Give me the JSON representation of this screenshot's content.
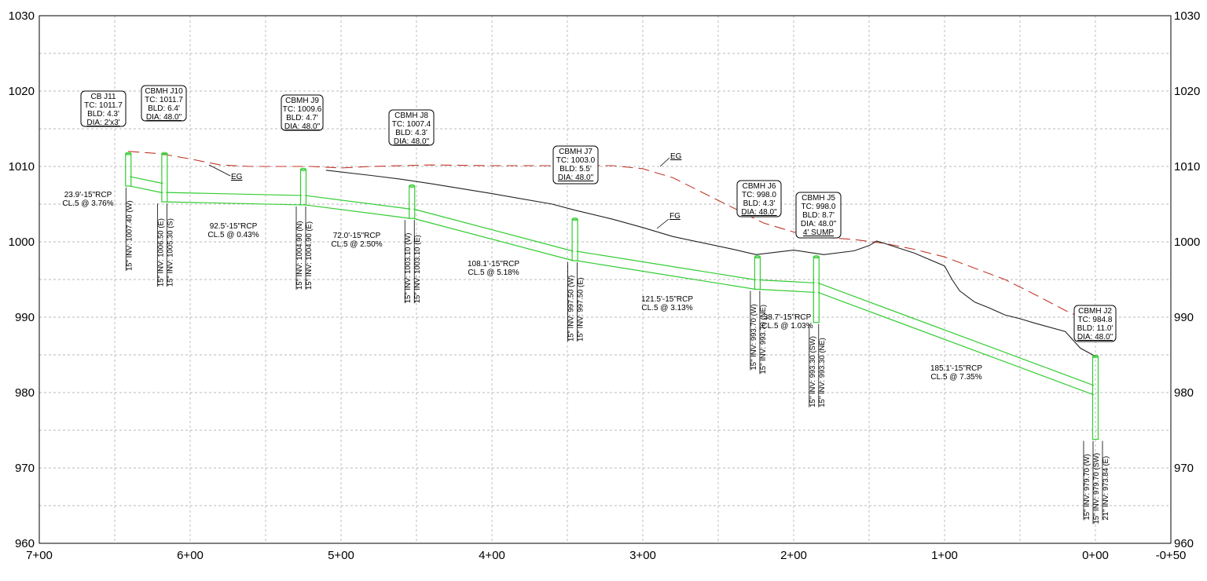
{
  "chart_data": {
    "type": "profile",
    "y_axis": {
      "range": [
        960,
        1030
      ],
      "tick_labels": [
        "960",
        "970",
        "980",
        "990",
        "1000",
        "1010",
        "1020",
        "1030"
      ]
    },
    "x_axis": {
      "direction": "decreasing-left-to-right",
      "tick_labels": [
        "7+00",
        "6+00",
        "5+00",
        "4+00",
        "3+00",
        "2+00",
        "1+00",
        "0+00",
        "-0+50"
      ]
    },
    "grid": "dashed",
    "series": [
      {
        "name": "EG",
        "style": "red dashed",
        "label": "EG",
        "points": [
          [
            641,
            1012
          ],
          [
            620,
            1011.7
          ],
          [
            600,
            1011
          ],
          [
            580,
            1010.2
          ],
          [
            560,
            1010
          ],
          [
            540,
            1010
          ],
          [
            520,
            1010
          ],
          [
            500,
            1009.8
          ],
          [
            480,
            1010
          ],
          [
            460,
            1010.1
          ],
          [
            440,
            1010.2
          ],
          [
            400,
            1010.1
          ],
          [
            360,
            1010.1
          ],
          [
            320,
            1010.1
          ],
          [
            300,
            1009.7
          ],
          [
            280,
            1008.5
          ],
          [
            260,
            1006.5
          ],
          [
            240,
            1004.5
          ],
          [
            220,
            1002.5
          ],
          [
            200,
            1001.3
          ],
          [
            180,
            1000.6
          ],
          [
            160,
            1000.3
          ],
          [
            140,
            999.8
          ],
          [
            120,
            999
          ],
          [
            100,
            998
          ],
          [
            80,
            996.5
          ],
          [
            60,
            995
          ],
          [
            40,
            993
          ],
          [
            20,
            990.9
          ],
          [
            0,
            989.1
          ]
        ]
      },
      {
        "name": "FG",
        "style": "black solid",
        "label": "FG",
        "points": [
          [
            510,
            1009.5
          ],
          [
            480,
            1008.8
          ],
          [
            460,
            1008.3
          ],
          [
            440,
            1007.7
          ],
          [
            400,
            1006.4
          ],
          [
            360,
            1005
          ],
          [
            345,
            1004.2
          ],
          [
            320,
            1003
          ],
          [
            300,
            1001.9
          ],
          [
            280,
            1000.7
          ],
          [
            240,
            999
          ],
          [
            225,
            998.3
          ],
          [
            200,
            998.9
          ],
          [
            180,
            998.3
          ],
          [
            160,
            998.8
          ],
          [
            150,
            999.5
          ],
          [
            145,
            1000.1
          ],
          [
            140,
            999.8
          ],
          [
            120,
            998.5
          ],
          [
            100,
            996.8
          ],
          [
            95,
            995
          ],
          [
            90,
            993.5
          ],
          [
            80,
            992
          ],
          [
            70,
            991.2
          ],
          [
            60,
            990.3
          ],
          [
            50,
            989.8
          ],
          [
            40,
            989.2
          ],
          [
            20,
            988.1
          ],
          [
            10,
            985.9
          ],
          [
            0,
            984.8
          ]
        ]
      }
    ],
    "structures": [
      {
        "name": "CB J11",
        "station": 641,
        "tc": "TC: 1011.7",
        "bld": "BLD: 4.3'",
        "dia": "DIA: 2'x3'",
        "top": 1011.7,
        "bottom": 1007.4,
        "inverts": [
          "15\" INV: 1007.40 (W)"
        ]
      },
      {
        "name": "CBMH J10",
        "station": 617,
        "tc": "TC: 1011.7",
        "bld": "BLD: 6.4'",
        "dia": "DIA: 48.0\"",
        "top": 1011.7,
        "bottom": 1005.3,
        "inverts": [
          "15\" INV: 1006.50 (E)",
          "15\" INV: 1005.30 (S)"
        ]
      },
      {
        "name": "CBMH J9",
        "station": 525,
        "tc": "TC: 1009.6",
        "bld": "BLD: 4.7'",
        "dia": "DIA: 48.0\"",
        "top": 1009.6,
        "bottom": 1004.9,
        "inverts": [
          "15\" INV: 1004.90 (N)",
          "15\" INV: 1004.90 (E)"
        ]
      },
      {
        "name": "CBMH J8",
        "station": 453,
        "tc": "TC: 1007.4",
        "bld": "BLD: 4.3'",
        "dia": "DIA: 48.0\"",
        "top": 1007.4,
        "bottom": 1003.1,
        "inverts": [
          "15\" INV: 1003.10 (W)",
          "15\" INV: 1003.10 (E)"
        ]
      },
      {
        "name": "CBMH J7",
        "station": 345,
        "tc": "TC: 1003.0",
        "bld": "BLD: 5.5'",
        "dia": "DIA: 48.0\"",
        "top": 1003.0,
        "bottom": 997.5,
        "inverts": [
          "15\" INV: 997.50 (W)",
          "15\" INV: 997.50 (E)"
        ]
      },
      {
        "name": "CBMH J6",
        "station": 224,
        "tc": "TC: 998.0",
        "bld": "BLD: 4.3'",
        "dia": "DIA: 48.0\"",
        "top": 998.0,
        "bottom": 993.7,
        "inverts": [
          "15\" INV: 993.70 (W)",
          "15\" INV: 993.70 (NE)"
        ]
      },
      {
        "name": "CBMH J5",
        "station": 185,
        "tc": "TC: 998.0",
        "bld": "BLD: 8.7'",
        "dia": "DIA: 48.0\"",
        "sump": "4' SUMP",
        "top": 998.0,
        "bottom": 989.3,
        "inverts": [
          "15\" INV: 993.30 (SW)",
          "15\" INV: 993.30 (NE)"
        ]
      },
      {
        "name": "CBMH J2",
        "station": 0,
        "tc": "TC: 984.8",
        "bld": "BLD: 11.0'",
        "dia": "DIA: 48.0\"",
        "top": 984.8,
        "bottom": 973.8,
        "inverts": [
          "15\" INV: 979.70 (W)",
          "15\" INV: 979.70 (SW)",
          "21\" INV: 973.84 (E)"
        ]
      }
    ],
    "pipes": [
      {
        "line1": "23.9'-15\"RCP",
        "line2": "CL.5 @ 3.76%",
        "from": [
          641,
          1007.4
        ],
        "to": [
          617,
          1006.5
        ]
      },
      {
        "line1": "92.5'-15\"RCP",
        "line2": "CL.5 @ 0.43%",
        "from": [
          617,
          1005.3
        ],
        "to": [
          525,
          1004.9
        ]
      },
      {
        "line1": "72.0'-15\"RCP",
        "line2": "CL.5 @ 2.50%",
        "from": [
          525,
          1004.9
        ],
        "to": [
          453,
          1003.1
        ]
      },
      {
        "line1": "108.1'-15\"RCP",
        "line2": "CL.5 @ 5.18%",
        "from": [
          453,
          1003.1
        ],
        "to": [
          345,
          997.5
        ]
      },
      {
        "line1": "121.5'-15\"RCP",
        "line2": "CL.5 @ 3.13%",
        "from": [
          345,
          997.5
        ],
        "to": [
          224,
          993.7
        ]
      },
      {
        "line1": "38.7'-15\"RCP",
        "line2": "CL.5 @ 1.03%",
        "from": [
          224,
          993.7
        ],
        "to": [
          185,
          993.3
        ]
      },
      {
        "line1": "185.1'-15\"RCP",
        "line2": "CL.5 @ 7.35%",
        "from": [
          185,
          993.3
        ],
        "to": [
          0,
          979.7
        ]
      }
    ]
  }
}
